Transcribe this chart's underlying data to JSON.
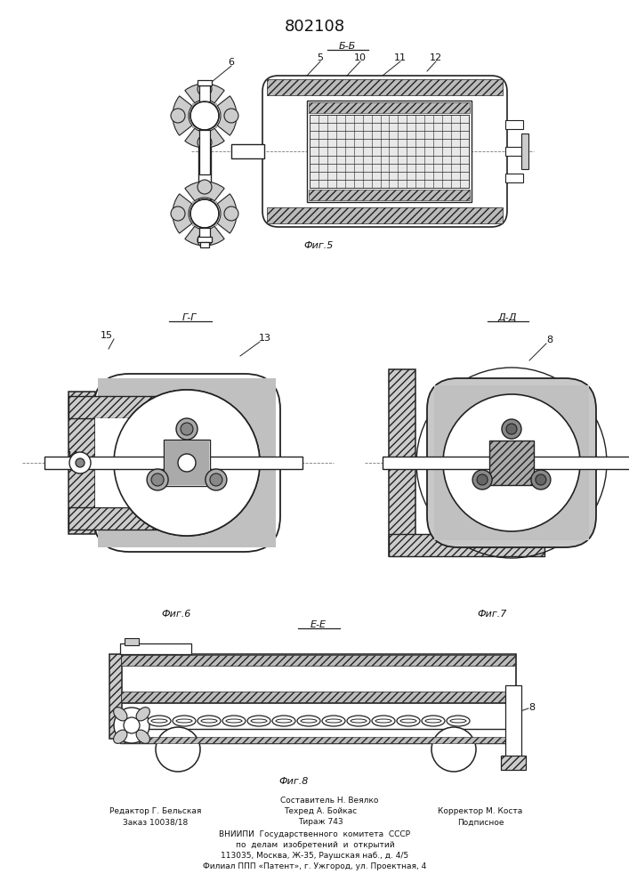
{
  "patent_number": "802108",
  "fig5_label": "Фиг.5",
  "fig6_label": "Фиг.6",
  "fig7_label": "Фиг.7",
  "fig8_label": "Фиг.8",
  "section_BB": "Б-Б",
  "section_GG": "Г-Г",
  "section_DD": "Д-Д",
  "section_EE": "E-E",
  "bg_color": "#ffffff",
  "line_color": "#222222",
  "footer_lines": [
    "Составитель Н. Веялко",
    "Редактор Г. Бельская",
    "Техред А. Бойкас",
    "Корректор М. Коста",
    "Заказ 10038/18",
    "Тираж 743",
    "Подписное",
    "ВНИИПИ  Государственного  комитета  СССР",
    "по  делам  изобретений  и  открытий",
    "113035, Москва, Ж-35, Раушская наб., д. 4/5",
    "Филиал ППП «Патент», г. Ужгород, ул. Проектная, 4"
  ]
}
